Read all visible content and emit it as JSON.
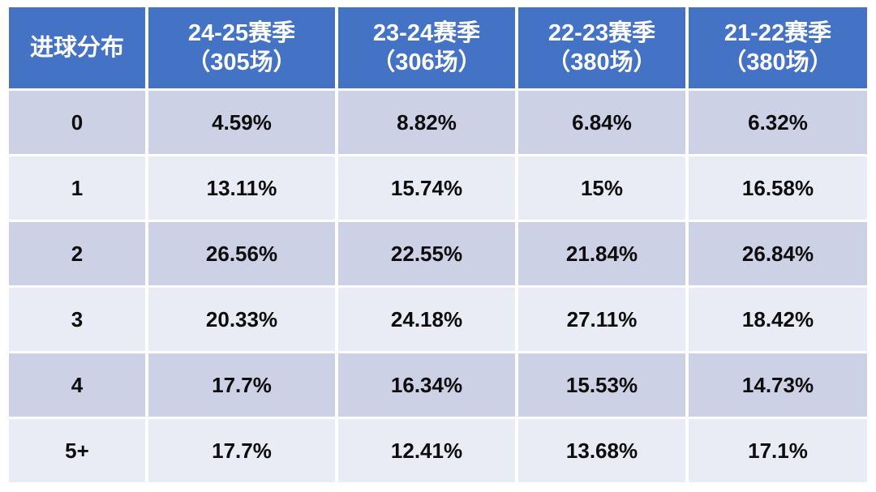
{
  "table": {
    "header": {
      "label": "进球分布",
      "columns": [
        {
          "season": "24-25",
          "line1": "24-25赛季",
          "line2": "（305场）"
        },
        {
          "season": "23-24",
          "line1": "23-24赛季",
          "line2": "（306场）"
        },
        {
          "season": "22-23",
          "line1": "22-23赛季",
          "line2": "（380场）"
        },
        {
          "season": "21-22",
          "line1": "21-22赛季",
          "line2": "（380场）"
        }
      ]
    },
    "rows": [
      {
        "label": "0",
        "values": [
          "4.59%",
          "8.82%",
          "6.84%",
          "6.32%"
        ]
      },
      {
        "label": "1",
        "values": [
          "13.11%",
          "15.74%",
          "15%",
          "16.58%"
        ]
      },
      {
        "label": "2",
        "values": [
          "26.56%",
          "22.55%",
          "21.84%",
          "26.84%"
        ]
      },
      {
        "label": "3",
        "values": [
          "20.33%",
          "24.18%",
          "27.11%",
          "18.42%"
        ]
      },
      {
        "label": "4",
        "values": [
          "17.7%",
          "16.34%",
          "15.53%",
          "14.73%"
        ]
      },
      {
        "label": "5+",
        "values": [
          "17.7%",
          "12.41%",
          "13.68%",
          "17.1%"
        ]
      }
    ]
  },
  "chart_data": {
    "type": "table",
    "title": "进球分布",
    "columns": [
      "进球分布",
      "24-25赛季（305场）",
      "23-24赛季（306场）",
      "22-23赛季（380场）",
      "21-22赛季（380场）"
    ],
    "rows": [
      [
        "0",
        "4.59%",
        "8.82%",
        "6.84%",
        "6.32%"
      ],
      [
        "1",
        "13.11%",
        "15.74%",
        "15%",
        "16.58%"
      ],
      [
        "2",
        "26.56%",
        "22.55%",
        "21.84%",
        "26.84%"
      ],
      [
        "3",
        "20.33%",
        "24.18%",
        "27.11%",
        "18.42%"
      ],
      [
        "4",
        "17.7%",
        "16.34%",
        "15.53%",
        "14.73%"
      ],
      [
        "5+",
        "17.7%",
        "12.41%",
        "13.68%",
        "17.1%"
      ]
    ]
  },
  "colors": {
    "header_bg": "#4472C4",
    "header_text": "#FFFFFF",
    "row_band_bg": "#CDD1E6",
    "row_light_bg": "#E9EBF5",
    "cell_text": "#0D0D0D",
    "page_bg": "#FFFFFF"
  }
}
